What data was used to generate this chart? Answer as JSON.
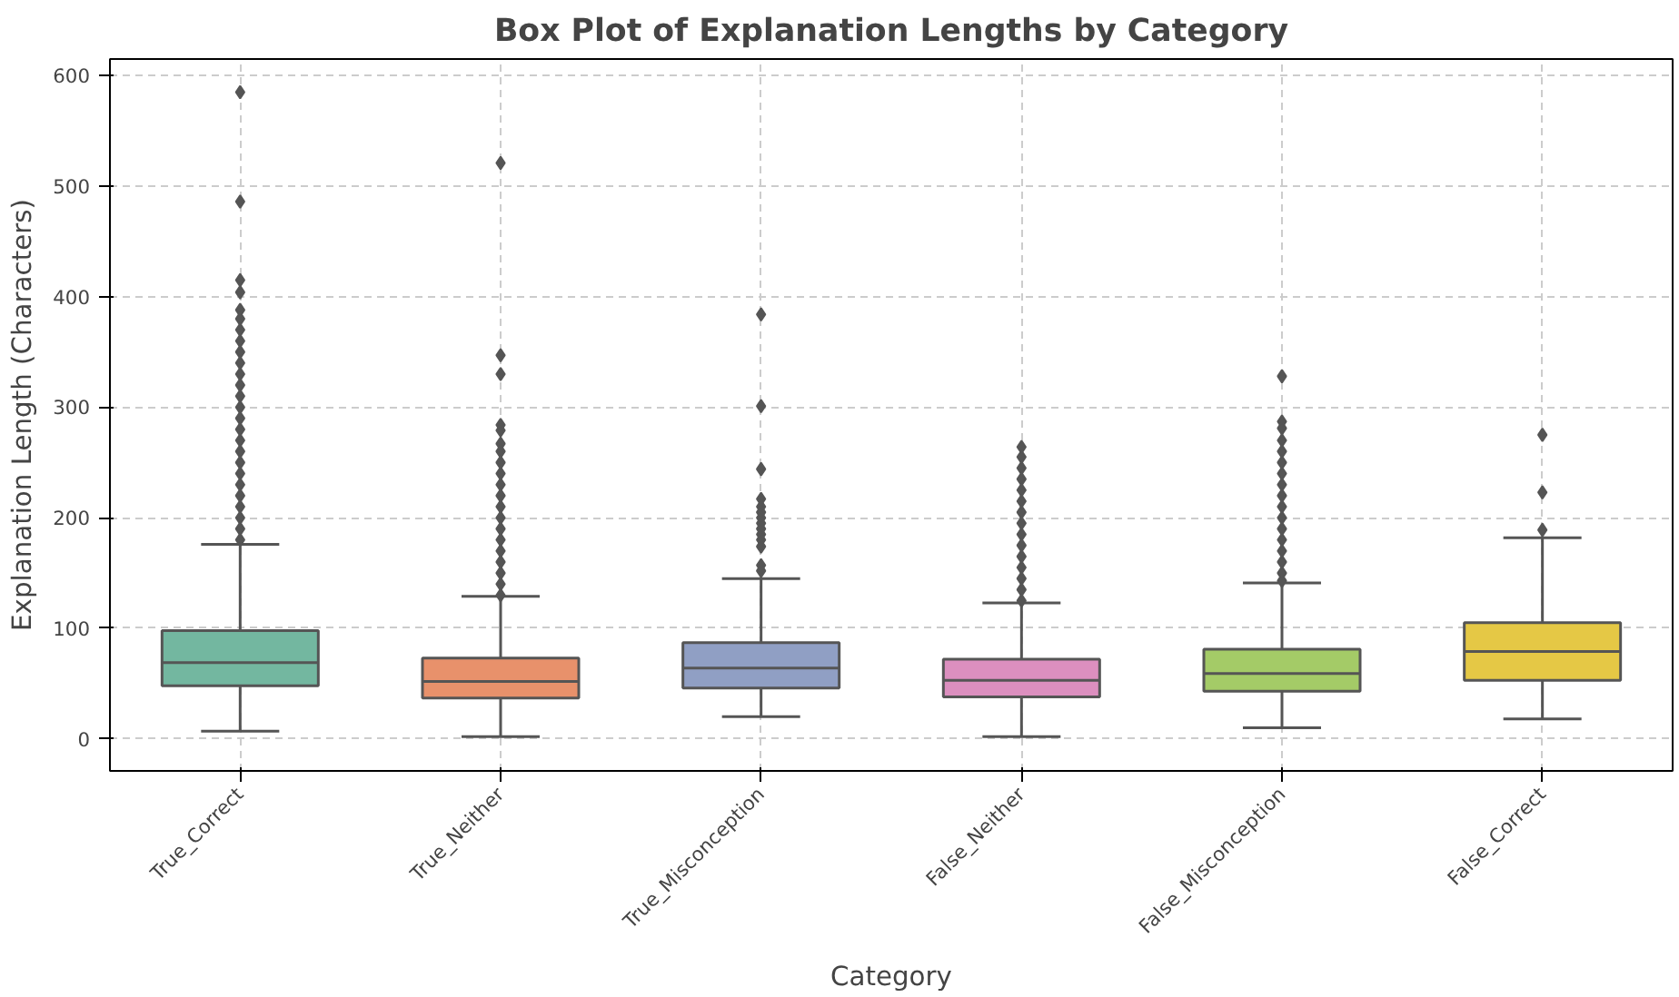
{
  "chart_data": {
    "type": "box",
    "title": "Box Plot of Explanation Lengths by Category",
    "xlabel": "Category",
    "ylabel": "Explanation Length (Characters)",
    "categories": [
      "True_Correct",
      "True_Neither",
      "True_Misconception",
      "False_Neither",
      "False_Misconception",
      "False_Correct"
    ],
    "colors": [
      "#73b7a0",
      "#e8916b",
      "#909fc4",
      "#dc8fbf",
      "#a4cb67",
      "#e5c845"
    ],
    "boxes": [
      {
        "low": 7,
        "q1": 48,
        "median": 69,
        "q3": 98,
        "high": 176,
        "outliers": [
          585,
          486,
          415,
          404,
          388,
          380,
          370,
          360,
          350,
          340,
          330,
          320,
          310,
          300,
          290,
          280,
          270,
          260,
          250,
          240,
          230,
          220,
          210,
          200,
          190,
          180
        ]
      },
      {
        "low": 2,
        "q1": 37,
        "median": 52,
        "q3": 73,
        "high": 129,
        "outliers": [
          521,
          347,
          330,
          284,
          279,
          267,
          260,
          250,
          240,
          230,
          220,
          210,
          200,
          190,
          180,
          170,
          160,
          150,
          140,
          130
        ]
      },
      {
        "low": 20,
        "q1": 46,
        "median": 64,
        "q3": 87,
        "high": 145,
        "outliers": [
          384,
          301,
          244,
          217,
          210,
          205,
          200,
          195,
          190,
          185,
          180,
          174,
          157,
          152
        ]
      },
      {
        "low": 2,
        "q1": 38,
        "median": 53,
        "q3": 72,
        "high": 123,
        "outliers": [
          264,
          255,
          245,
          235,
          225,
          215,
          205,
          195,
          185,
          175,
          165,
          155,
          145,
          135,
          125
        ]
      },
      {
        "low": 10,
        "q1": 43,
        "median": 59,
        "q3": 81,
        "high": 141,
        "outliers": [
          328,
          287,
          281,
          270,
          260,
          250,
          240,
          230,
          220,
          210,
          200,
          190,
          180,
          170,
          160,
          150,
          143
        ]
      },
      {
        "low": 18,
        "q1": 53,
        "median": 79,
        "q3": 105,
        "high": 182,
        "outliers": [
          275,
          223,
          189
        ]
      }
    ],
    "ylim": [
      -29,
      615
    ],
    "yticks": [
      0,
      100,
      200,
      300,
      400,
      500,
      600
    ],
    "grid": true,
    "marker": "diamond"
  }
}
